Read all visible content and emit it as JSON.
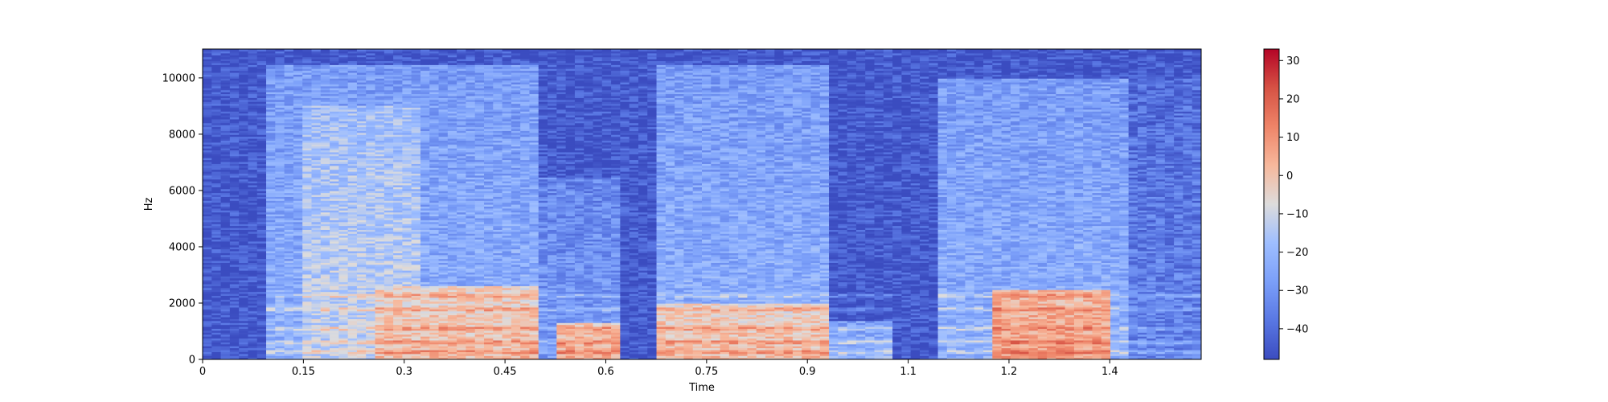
{
  "chart_data": {
    "type": "heatmap",
    "title": "",
    "xlabel": "Time",
    "ylabel": "Hz",
    "xlim": [
      0,
      1.486
    ],
    "ylim": [
      0,
      11025
    ],
    "x_ticks": [
      "0",
      "0.15",
      "0.3",
      "0.45",
      "0.6",
      "0.75",
      "0.9",
      "1.1",
      "1.2",
      "1.4"
    ],
    "x_tick_values": [
      0,
      0.15,
      0.3,
      0.45,
      0.6,
      0.75,
      0.9,
      1.05,
      1.2,
      1.35
    ],
    "y_ticks": [
      "0",
      "2000",
      "4000",
      "6000",
      "8000",
      "10000"
    ],
    "y_tick_values": [
      0,
      2000,
      4000,
      6000,
      8000,
      10000
    ],
    "colorbar": {
      "colormap": "coolwarm",
      "range": [
        -48,
        33
      ],
      "ticks": [
        "30",
        "20",
        "10",
        "0",
        "−10",
        "−20",
        "−30",
        "−40"
      ],
      "tick_values": [
        30,
        20,
        10,
        0,
        -10,
        -20,
        -30,
        -40
      ]
    },
    "background_db": -45,
    "segments": [
      {
        "t_start": 0.09,
        "t_end": 0.5,
        "freq_top": 10500,
        "level_db": -22
      },
      {
        "t_start": 0.15,
        "t_end": 0.32,
        "freq_top": 9000,
        "level_db": -12
      },
      {
        "t_start": 0.26,
        "t_end": 0.5,
        "freq_top": 2600,
        "level_db": 2
      },
      {
        "t_start": 0.5,
        "t_end": 0.62,
        "freq_top": 6500,
        "level_db": -28
      },
      {
        "t_start": 0.53,
        "t_end": 0.62,
        "freq_top": 1300,
        "level_db": 6
      },
      {
        "t_start": 0.67,
        "t_end": 0.93,
        "freq_top": 10500,
        "level_db": -22
      },
      {
        "t_start": 0.67,
        "t_end": 0.93,
        "freq_top": 2000,
        "level_db": 2
      },
      {
        "t_start": 0.93,
        "t_end": 1.02,
        "freq_top": 1400,
        "level_db": -20
      },
      {
        "t_start": 1.1,
        "t_end": 1.38,
        "freq_top": 10000,
        "level_db": -22
      },
      {
        "t_start": 1.17,
        "t_end": 1.35,
        "freq_top": 2500,
        "level_db": 8
      },
      {
        "t_start": 1.38,
        "t_end": 1.486,
        "freq_top": 10000,
        "level_db": -34
      }
    ],
    "harmonic_bands_hz": [
      300,
      600,
      1100,
      1800,
      2300
    ]
  }
}
